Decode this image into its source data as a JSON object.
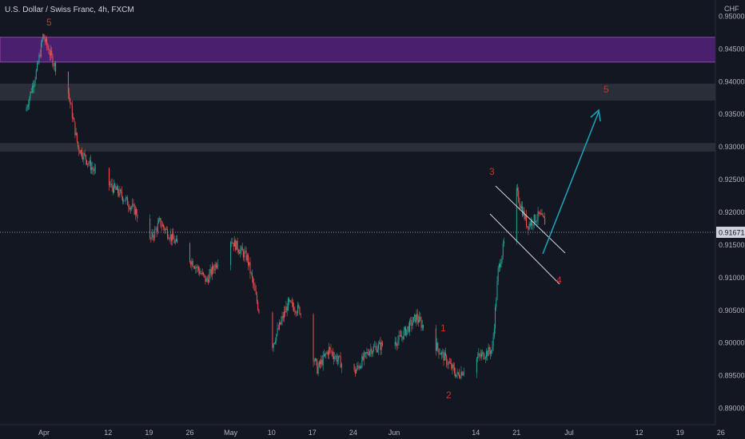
{
  "chart_data": {
    "type": "candlestick",
    "title": "U.S. Dollar / Swiss Franc, 4h, FXCM",
    "currency": "CHF",
    "ylim": [
      0.8875,
      0.9525
    ],
    "y_ticks": [
      "0.95000",
      "0.94500",
      "0.94000",
      "0.93500",
      "0.93000",
      "0.92500",
      "0.92000",
      "0.91500",
      "0.91000",
      "0.90500",
      "0.90000",
      "0.89500",
      "0.89000"
    ],
    "x_ticks": [
      "Apr",
      "12",
      "19",
      "26",
      "May",
      "10",
      "17",
      "24",
      "Jun",
      "14",
      "21",
      "Jul",
      "12",
      "19",
      "26"
    ],
    "last_price": "0.91671",
    "colors": {
      "up": "#26a69a",
      "down": "#ef5350",
      "zone_purple": "#4a1f6e",
      "zone_grey": "#2a2e39",
      "arrow": "#1e9fb5",
      "wave_label": "#c0392b",
      "channel": "#d1d4dc"
    },
    "zones": [
      {
        "name": "resistance-zone-purple",
        "from": 0.943,
        "to": 0.9468
      },
      {
        "name": "zone-grey-upper",
        "from": 0.9371,
        "to": 0.9397
      },
      {
        "name": "zone-grey-lower",
        "from": 0.9293,
        "to": 0.9306
      }
    ],
    "wave_labels": [
      "5",
      "1",
      "2",
      "3",
      "4",
      "5"
    ],
    "price_path": [
      {
        "x": "Mar 29",
        "y": 0.9355
      },
      {
        "x": "Mar 31",
        "y": 0.942
      },
      {
        "x": "Apr 1",
        "y": 0.947
      },
      {
        "x": "Apr 3",
        "y": 0.9425
      },
      {
        "x": "Apr 5",
        "y": 0.94
      },
      {
        "x": "Apr 7",
        "y": 0.93
      },
      {
        "x": "Apr 10",
        "y": 0.926
      },
      {
        "x": "Apr 14",
        "y": 0.923
      },
      {
        "x": "Apr 17",
        "y": 0.92
      },
      {
        "x": "Apr 19",
        "y": 0.915
      },
      {
        "x": "Apr 21",
        "y": 0.9185
      },
      {
        "x": "Apr 24",
        "y": 0.915
      },
      {
        "x": "Apr 27",
        "y": 0.912
      },
      {
        "x": "Apr 29",
        "y": 0.9095
      },
      {
        "x": "May 3",
        "y": 0.916
      },
      {
        "x": "May 6",
        "y": 0.913
      },
      {
        "x": "May 8",
        "y": 0.905
      },
      {
        "x": "May 10",
        "y": 0.899
      },
      {
        "x": "May 13",
        "y": 0.906
      },
      {
        "x": "May 15",
        "y": 0.905
      },
      {
        "x": "May 18",
        "y": 0.896
      },
      {
        "x": "May 20",
        "y": 0.899
      },
      {
        "x": "May 24",
        "y": 0.895
      },
      {
        "x": "May 27",
        "y": 0.899
      },
      {
        "x": "Jun 1",
        "y": 0.9005
      },
      {
        "x": "Jun 4",
        "y": 0.904
      },
      {
        "x": "Jun 7",
        "y": 0.9
      },
      {
        "x": "Jun 11",
        "y": 0.895
      },
      {
        "x": "Jun 14",
        "y": 0.8975
      },
      {
        "x": "Jun 17",
        "y": 0.899
      },
      {
        "x": "Jun 18",
        "y": 0.911
      },
      {
        "x": "Jun 21",
        "y": 0.9235
      },
      {
        "x": "Jun 23",
        "y": 0.918
      },
      {
        "x": "Jun 25",
        "y": 0.9195
      },
      {
        "x": "Jun 28",
        "y": 0.9167
      }
    ]
  }
}
